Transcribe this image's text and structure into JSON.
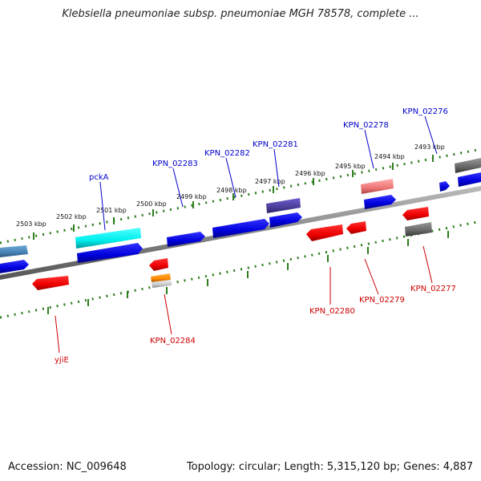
{
  "title": "Klebsiella pneumoniae subsp. pneumoniae MGH 78578, complete ...",
  "footer": {
    "accession": "Accession: NC_009648",
    "stats": "Topology: circular; Length: 5,315,120 bp; Genes: 4,887"
  },
  "colors": {
    "forward_label": "#0000cc",
    "reverse_label": "#cc0000",
    "cds_forward": "#0000ff",
    "cds_reverse": "#ff0000",
    "tick": "#2e7d1e",
    "backbone": "#888888"
  },
  "position_labels": [
    "2503 kbp",
    "2502 kbp",
    "2501 kbp",
    "2500 kbp",
    "2499 kbp",
    "2498 kbp",
    "2497 kbp",
    "2496 kbp",
    "2495 kbp",
    "2494 kbp",
    "2493 kbp"
  ],
  "gene_labels_forward": [
    "pckA",
    "KPN_02283",
    "KPN_02282",
    "KPN_02281",
    "KPN_02278",
    "KPN_02276"
  ],
  "gene_labels_reverse": [
    "yjiE",
    "KPN_02284",
    "KPN_02280",
    "KPN_02279",
    "KPN_02277"
  ]
}
